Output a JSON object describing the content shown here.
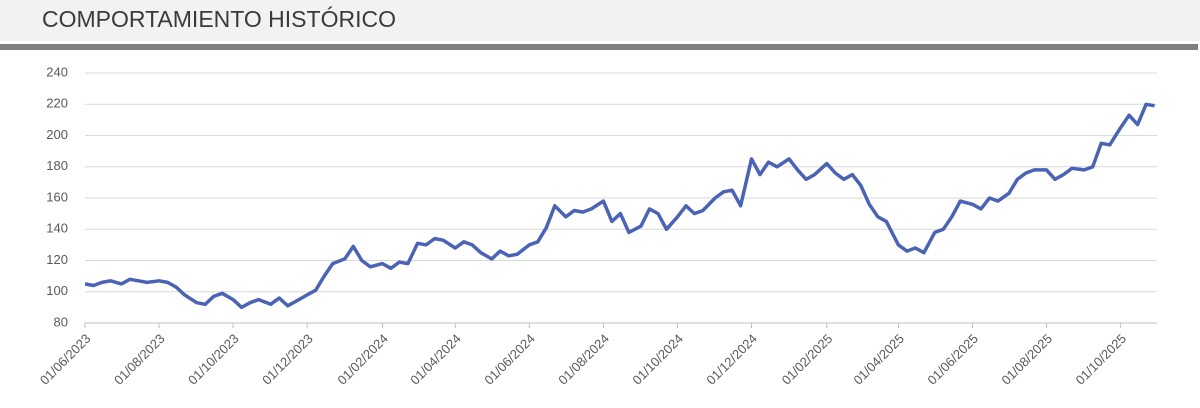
{
  "chart_data": {
    "type": "line",
    "title": "COMPORTAMIENTO HISTÓRICO",
    "x": [
      "01/06/2023",
      "08/06/2023",
      "15/06/2023",
      "22/06/2023",
      "01/07/2023",
      "08/07/2023",
      "15/07/2023",
      "22/07/2023",
      "01/08/2023",
      "08/08/2023",
      "15/08/2023",
      "22/08/2023",
      "01/09/2023",
      "08/09/2023",
      "15/09/2023",
      "22/09/2023",
      "01/10/2023",
      "08/10/2023",
      "15/10/2023",
      "22/10/2023",
      "01/11/2023",
      "08/11/2023",
      "15/11/2023",
      "22/11/2023",
      "01/12/2023",
      "08/12/2023",
      "15/12/2023",
      "22/12/2023",
      "01/01/2024",
      "08/01/2024",
      "15/01/2024",
      "22/01/2024",
      "01/02/2024",
      "08/02/2024",
      "15/02/2024",
      "22/02/2024",
      "01/03/2024",
      "08/03/2024",
      "15/03/2024",
      "22/03/2024",
      "01/04/2024",
      "08/04/2024",
      "15/04/2024",
      "22/04/2024",
      "01/05/2024",
      "08/05/2024",
      "15/05/2024",
      "22/05/2024",
      "01/06/2024",
      "08/06/2024",
      "15/06/2024",
      "22/06/2024",
      "01/07/2024",
      "08/07/2024",
      "15/07/2024",
      "22/07/2024",
      "01/08/2024",
      "08/08/2024",
      "15/08/2024",
      "22/08/2024",
      "01/09/2024",
      "08/09/2024",
      "15/09/2024",
      "22/09/2024",
      "01/10/2024",
      "08/10/2024",
      "15/10/2024",
      "22/10/2024",
      "01/11/2024",
      "08/11/2024",
      "15/11/2024",
      "22/11/2024",
      "01/12/2024",
      "08/12/2024",
      "15/12/2024",
      "22/12/2024",
      "01/01/2025",
      "08/01/2025",
      "15/01/2025",
      "22/01/2025",
      "01/02/2025",
      "08/02/2025",
      "15/02/2025",
      "22/02/2025",
      "01/03/2025",
      "08/03/2025",
      "15/03/2025",
      "22/03/2025",
      "01/04/2025",
      "08/04/2025",
      "15/04/2025",
      "22/04/2025",
      "01/05/2025",
      "08/05/2025",
      "15/05/2025",
      "22/05/2025",
      "01/06/2025",
      "08/06/2025",
      "15/06/2025",
      "22/06/2025",
      "01/07/2025",
      "08/07/2025",
      "15/07/2025",
      "22/07/2025",
      "01/08/2025",
      "08/08/2025",
      "15/08/2025",
      "22/08/2025",
      "01/09/2025",
      "08/09/2025",
      "15/09/2025",
      "22/09/2025",
      "01/10/2025",
      "08/10/2025",
      "15/10/2025",
      "22/10/2025",
      "29/10/2025"
    ],
    "series": [
      {
        "color": "#4a63b4",
        "values": [
          105,
          104,
          106,
          107,
          105,
          108,
          107,
          106,
          107,
          106,
          103,
          98,
          93,
          92,
          97,
          99,
          95,
          90,
          93,
          95,
          92,
          96,
          91,
          94,
          98,
          101,
          110,
          118,
          121,
          129,
          120,
          116,
          118,
          115,
          119,
          118,
          131,
          130,
          134,
          133,
          128,
          132,
          130,
          125,
          121,
          126,
          123,
          124,
          130,
          132,
          141,
          155,
          148,
          152,
          151,
          153,
          158,
          145,
          150,
          138,
          142,
          153,
          150,
          140,
          148,
          155,
          150,
          152,
          160,
          164,
          165,
          155,
          185,
          175,
          183,
          180,
          185,
          178,
          172,
          175,
          182,
          176,
          172,
          175,
          168,
          156,
          148,
          145,
          130,
          126,
          128,
          125,
          138,
          140,
          148,
          158,
          156,
          153,
          160,
          158,
          163,
          172,
          176,
          178,
          178,
          172,
          175,
          179,
          178,
          180,
          195,
          194,
          205,
          213,
          207,
          220,
          219
        ]
      }
    ],
    "xlim": [
      "01/06/2023",
      "31/10/2025"
    ],
    "xticks": [
      "01/06/2023",
      "01/08/2023",
      "01/10/2023",
      "01/12/2023",
      "01/02/2024",
      "01/04/2024",
      "01/06/2024",
      "01/08/2024",
      "01/10/2024",
      "01/12/2024",
      "01/02/2025",
      "01/04/2025",
      "01/06/2025",
      "01/08/2025",
      "01/10/2025"
    ],
    "ylim": [
      80,
      240
    ],
    "yticks": [
      80,
      100,
      120,
      140,
      160,
      180,
      200,
      220,
      240
    ],
    "grid": true
  }
}
